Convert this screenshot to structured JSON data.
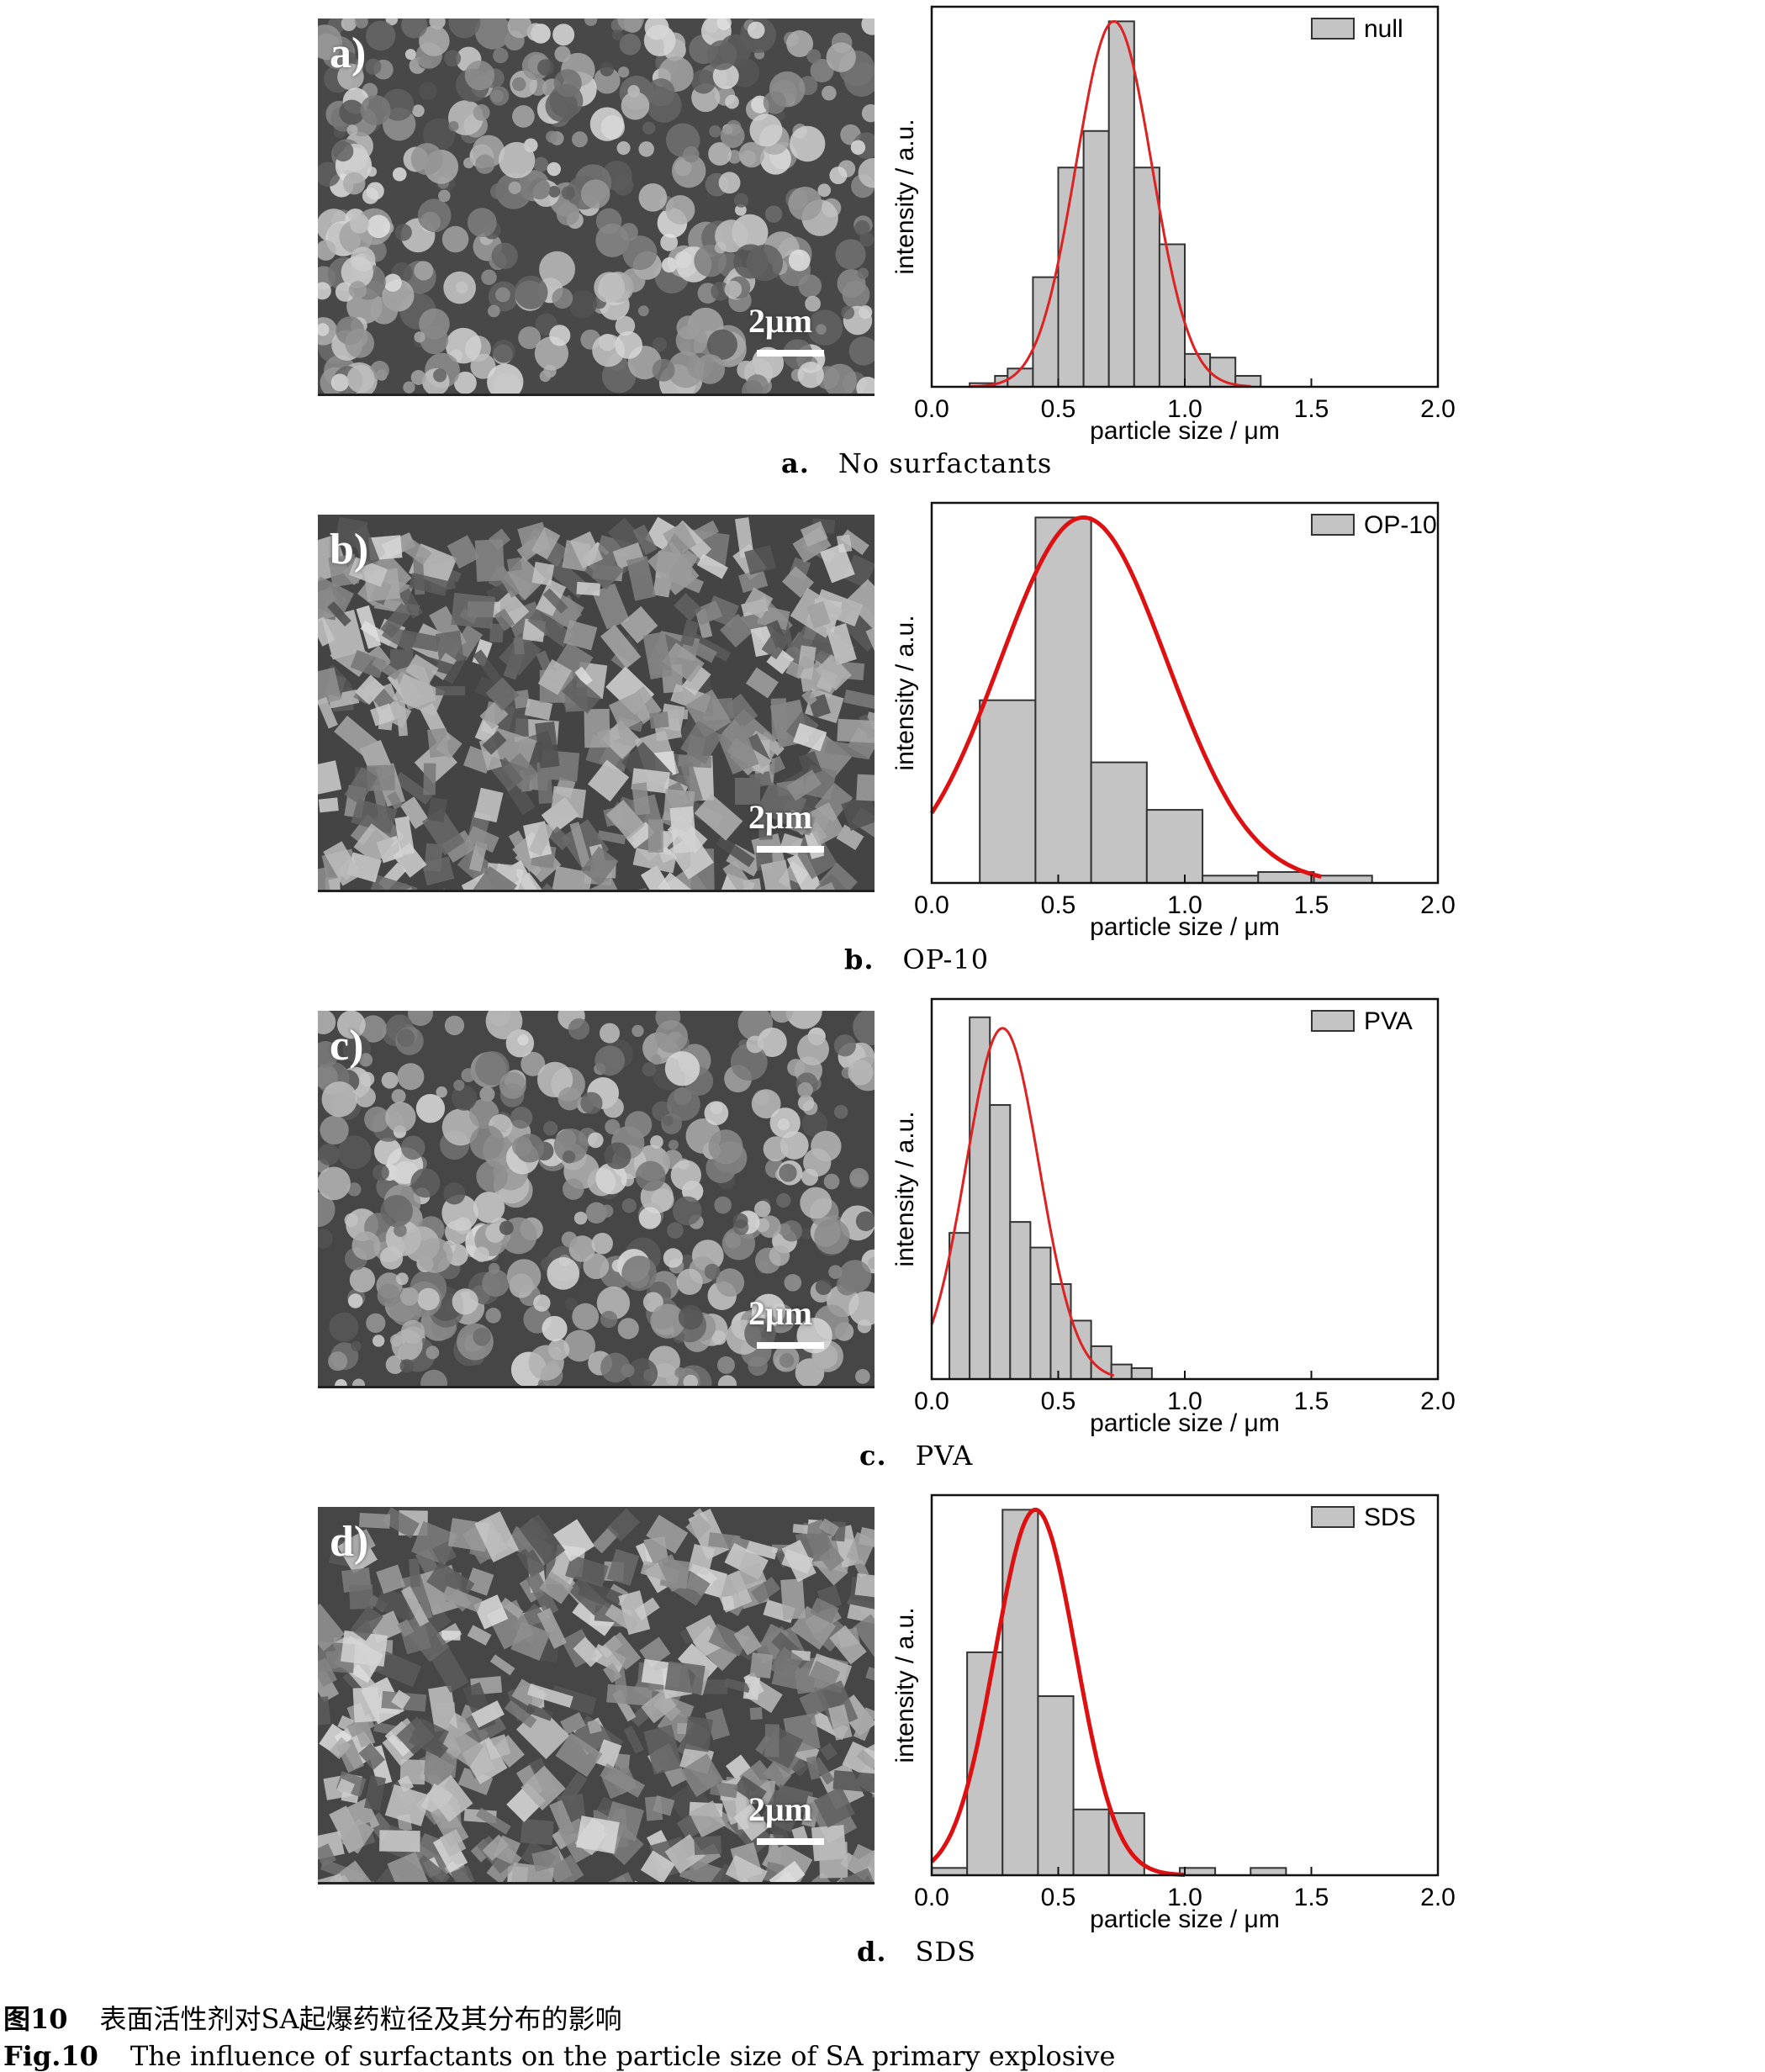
{
  "panels": [
    {
      "letter": "a)",
      "scale_label": "2μm",
      "caption_letter": "a.",
      "caption_text": "No surfactants",
      "sem_color": "#9a9a9a",
      "chart_data": {
        "type": "bar",
        "xlabel": "particle size / μm",
        "ylabel": "intensity / a.u.",
        "xlim": [
          0.0,
          2.0
        ],
        "ylim": [
          0,
          1.04
        ],
        "xticks": [
          "0.0",
          "0.5",
          "1.0",
          "1.5",
          "2.0"
        ],
        "legend": "null",
        "legend_position": "top-right",
        "bin_edges": [
          0.15,
          0.25,
          0.3,
          0.4,
          0.5,
          0.6,
          0.7,
          0.8,
          0.9,
          1.0,
          1.1,
          1.2,
          1.3
        ],
        "values": [
          0.01,
          0.03,
          0.05,
          0.3,
          0.6,
          0.7,
          1.0,
          0.6,
          0.39,
          0.09,
          0.08,
          0.03
        ],
        "fit": {
          "type": "gaussian",
          "mean": 0.72,
          "sigma": 0.15,
          "peak": 1.0,
          "x_range": [
            0.15,
            1.26
          ],
          "color": "#dd2222"
        }
      }
    },
    {
      "letter": "b)",
      "scale_label": "2μm",
      "caption_letter": "b.",
      "caption_text": "OP-10",
      "sem_color": "#7d7d7d",
      "chart_data": {
        "type": "bar",
        "xlabel": "particle size / μm",
        "ylabel": "intensity / a.u.",
        "xlim": [
          0.0,
          2.0
        ],
        "ylim": [
          0,
          1.04
        ],
        "xticks": [
          "0.0",
          "0.5",
          "1.0",
          "1.5",
          "2.0"
        ],
        "legend": "OP-10",
        "legend_position": "top-right",
        "bin_edges": [
          0.19,
          0.41,
          0.63,
          0.85,
          1.07,
          1.29,
          1.51,
          1.74
        ],
        "values": [
          0.5,
          1.0,
          0.33,
          0.2,
          0.02,
          0.03,
          0.02
        ],
        "fit": {
          "type": "gaussian",
          "mean": 0.6,
          "sigma": 0.33,
          "peak": 1.0,
          "x_range": [
            0.0,
            1.54
          ],
          "color": "#dd1111"
        }
      }
    },
    {
      "letter": "c)",
      "scale_label": "2μm",
      "caption_letter": "c.",
      "caption_text": "PVA",
      "sem_color": "#8f8f8f",
      "chart_data": {
        "type": "bar",
        "xlabel": "particle size / μm",
        "ylabel": "intensity / a.u.",
        "xlim": [
          0.0,
          2.0
        ],
        "ylim": [
          0,
          1.04
        ],
        "xticks": [
          "0.0",
          "0.5",
          "1.0",
          "1.5",
          "2.0"
        ],
        "legend": "PVA",
        "legend_position": "top-right",
        "bin_edges": [
          0.07,
          0.15,
          0.23,
          0.31,
          0.39,
          0.47,
          0.55,
          0.63,
          0.71,
          0.79,
          0.87
        ],
        "values": [
          0.4,
          0.99,
          0.75,
          0.43,
          0.36,
          0.26,
          0.16,
          0.09,
          0.04,
          0.03
        ],
        "fit": {
          "type": "gaussian",
          "mean": 0.28,
          "sigma": 0.145,
          "peak": 0.96,
          "x_range": [
            0.0,
            0.72
          ],
          "color": "#dd2222"
        }
      }
    },
    {
      "letter": "d)",
      "scale_label": "2μm",
      "caption_letter": "d.",
      "caption_text": "SDS",
      "sem_color": "#8a8a8a",
      "chart_data": {
        "type": "bar",
        "xlabel": "particle size / μm",
        "ylabel": "intensity / a.u.",
        "xlim": [
          0.0,
          2.0
        ],
        "ylim": [
          0,
          1.04
        ],
        "xticks": [
          "0.0",
          "0.5",
          "1.0",
          "1.5",
          "2.0"
        ],
        "legend": "SDS",
        "legend_position": "top-right",
        "bin_edges": [
          0.0,
          0.14,
          0.28,
          0.42,
          0.56,
          0.7,
          0.84,
          0.98,
          1.12,
          1.26,
          1.4,
          1.54
        ],
        "values": [
          0.02,
          0.61,
          1.0,
          0.49,
          0.18,
          0.17,
          0.0,
          0.02,
          0.0,
          0.02,
          0.0
        ],
        "fit": {
          "type": "gaussian",
          "mean": 0.41,
          "sigma": 0.16,
          "peak": 1.0,
          "x_range": [
            0.0,
            1.0
          ],
          "color": "#dd1111"
        }
      }
    }
  ],
  "figure_caption": {
    "cn_label": "图10",
    "cn_text": "表面活性剂对SA起爆药粒径及其分布的影响",
    "en_label": "Fig.10",
    "en_text": "The influence of surfactants on the particle size of SA primary explosive"
  }
}
